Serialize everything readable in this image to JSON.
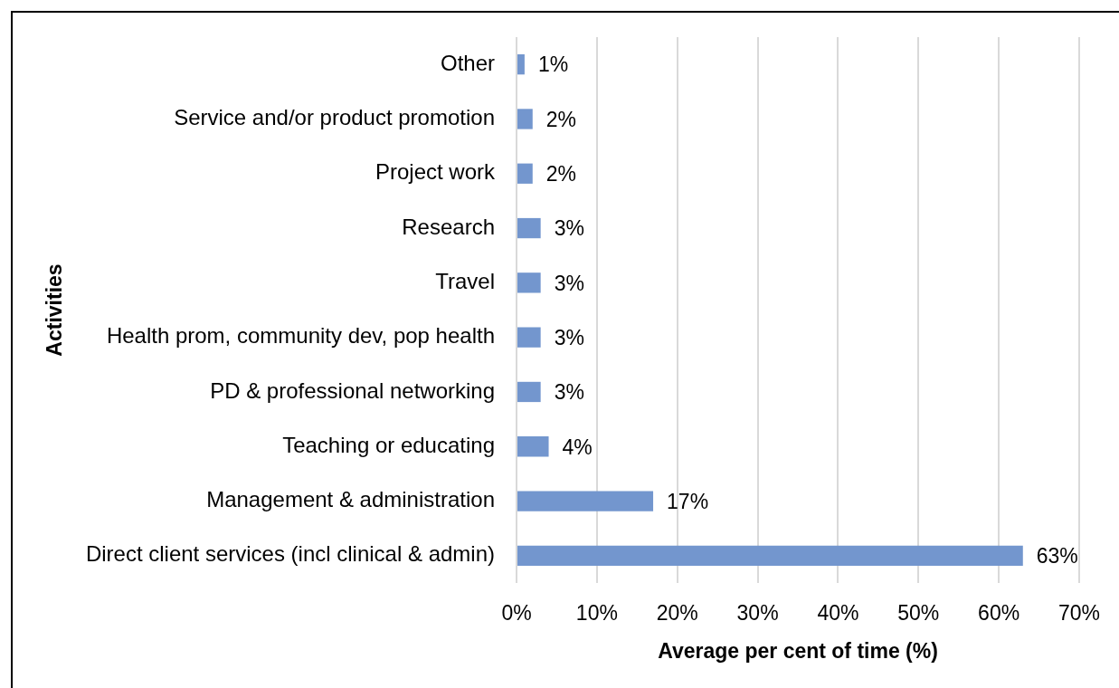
{
  "chart_data": {
    "type": "bar",
    "orientation": "horizontal",
    "xlabel": "Average per cent of time (%)",
    "ylabel": "Activities",
    "categories": [
      "Other",
      "Service and/or product promotion",
      "Project work",
      "Research",
      "Travel",
      "Health prom, community dev, pop health",
      "PD & professional networking",
      "Teaching or educating",
      "Management & administration",
      "Direct client services (incl clinical & admin)"
    ],
    "values": [
      1,
      2,
      2,
      3,
      3,
      3,
      3,
      4,
      17,
      63
    ],
    "value_labels": [
      "1%",
      "2%",
      "2%",
      "3%",
      "3%",
      "3%",
      "3%",
      "4%",
      "17%",
      "63%"
    ],
    "color": "#7396ce",
    "xlim": [
      0,
      70
    ],
    "xticks": [
      {
        "value": 0,
        "label": "0%"
      },
      {
        "value": 10,
        "label": "10%"
      },
      {
        "value": 20,
        "label": "20%"
      },
      {
        "value": 30,
        "label": "30%"
      },
      {
        "value": 40,
        "label": "40%"
      },
      {
        "value": 50,
        "label": "50%"
      },
      {
        "value": 60,
        "label": "60%"
      },
      {
        "value": 70,
        "label": "70%"
      }
    ],
    "grid": "x"
  }
}
